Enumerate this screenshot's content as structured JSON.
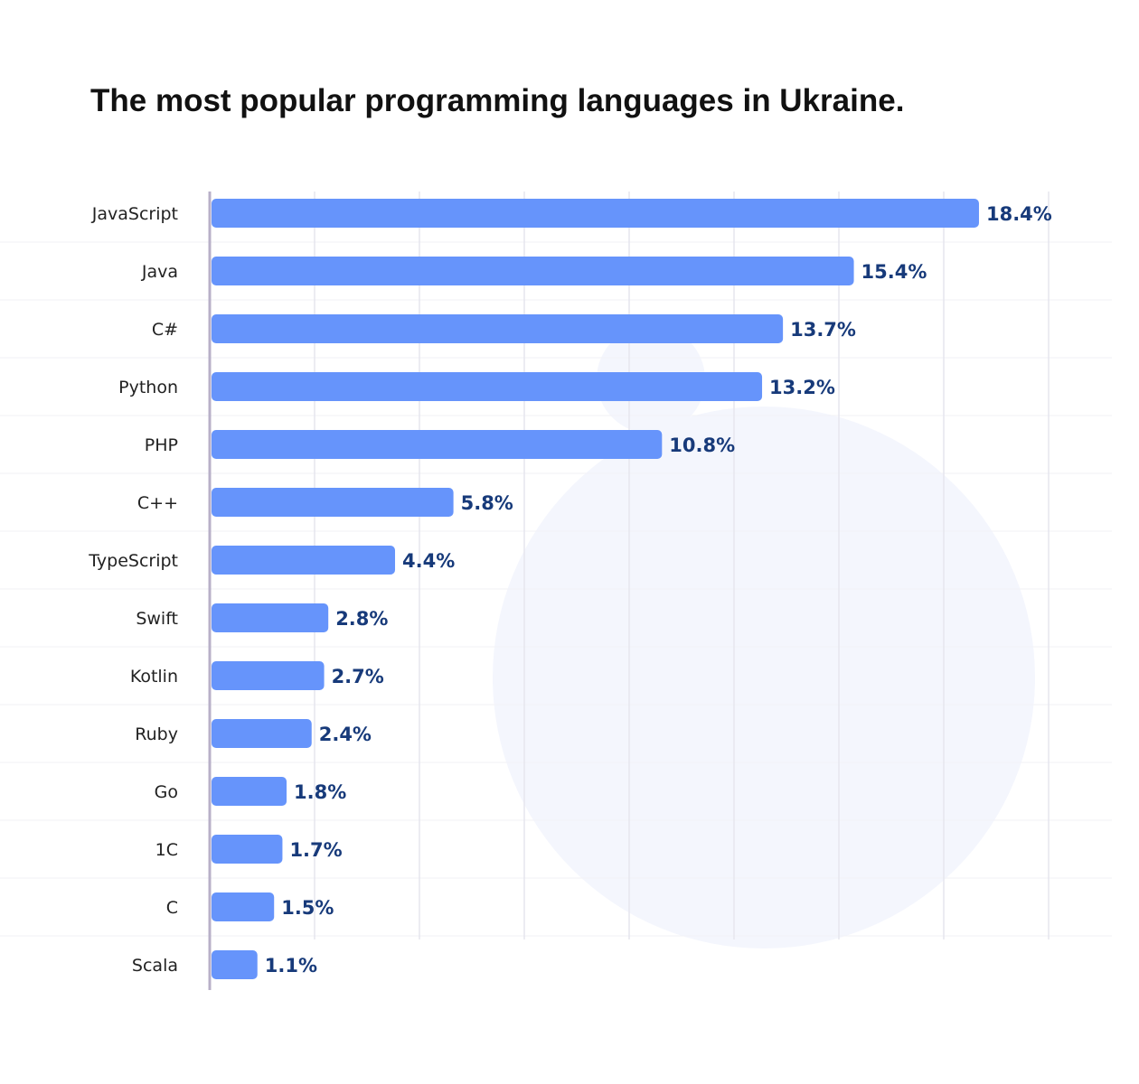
{
  "chart_data": {
    "type": "bar",
    "orientation": "horizontal",
    "title": "The most popular programming languages in Ukraine.",
    "categories": [
      "JavaScript",
      "Java",
      "C#",
      "Python",
      "PHP",
      "C++",
      "TypeScript",
      "Swift",
      "Kotlin",
      "Ruby",
      "Go",
      "1C",
      "C",
      "Scala"
    ],
    "values": [
      18.4,
      15.4,
      13.7,
      13.2,
      10.8,
      5.8,
      4.4,
      2.8,
      2.7,
      2.4,
      1.8,
      1.7,
      1.5,
      1.1
    ],
    "value_labels": [
      "18.4%",
      "15.4%",
      "13.7%",
      "13.2%",
      "10.8%",
      "5.8%",
      "4.4%",
      "2.8%",
      "2.7%",
      "2.4%",
      "1.8%",
      "1.7%",
      "1.5%",
      "1.1%"
    ],
    "xlabel": "",
    "ylabel": "",
    "grid": true,
    "legend": "none",
    "colors": {
      "bar": "#6694fb",
      "value_text": "#173a7a",
      "category_text": "#222222",
      "axis": "#b8b0c8",
      "grid": "#e6e6ee",
      "watermark": "#f4f6fd"
    }
  }
}
